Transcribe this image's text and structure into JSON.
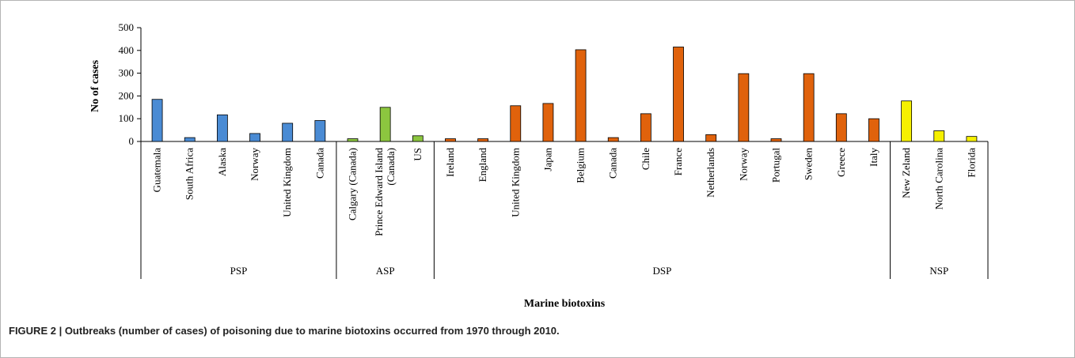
{
  "caption": "FIGURE 2 | Outbreaks (number of cases) of poisoning due to marine biotoxins occurred from 1970 through 2010.",
  "chart_data": {
    "type": "bar",
    "title": "",
    "xlabel": "Marine biotoxins",
    "ylabel": "No of cases",
    "ylim": [
      0,
      500
    ],
    "yticks": [
      0,
      100,
      200,
      300,
      400,
      500
    ],
    "grid": false,
    "groups": [
      {
        "name": "PSP",
        "color": "#4a8bd4",
        "categories": [
          "Guatemala",
          "South Africa",
          "Alaska",
          "Norway",
          "United Kingdom",
          "Canada"
        ],
        "values": [
          185,
          17,
          117,
          35,
          80,
          92
        ]
      },
      {
        "name": "ASP",
        "color": "#8cc63f",
        "categories": [
          "Calgary (Canada)",
          "Prince Edward Island (Canada)",
          "US"
        ],
        "category_lines": [
          [
            "Calgary (Canada)"
          ],
          [
            "Prince Edward Island",
            "(Canada)"
          ],
          [
            "US"
          ]
        ],
        "values": [
          12,
          150,
          25
        ]
      },
      {
        "name": "DSP",
        "color": "#e0620c",
        "categories": [
          "Ireland",
          "England",
          "United Kingdom",
          "Japan",
          "Belgium",
          "Canada",
          "Chile",
          "France",
          "Netherlands",
          "Norway",
          "Portugal",
          "Sweden",
          "Greece",
          "Italy"
        ],
        "values": [
          12,
          12,
          157,
          167,
          403,
          17,
          122,
          415,
          30,
          298,
          12,
          298,
          122,
          100
        ]
      },
      {
        "name": "NSP",
        "color": "#f6f000",
        "categories": [
          "New Zeland",
          "North Carolina",
          "Florida"
        ],
        "values": [
          178,
          47,
          22
        ]
      }
    ]
  }
}
